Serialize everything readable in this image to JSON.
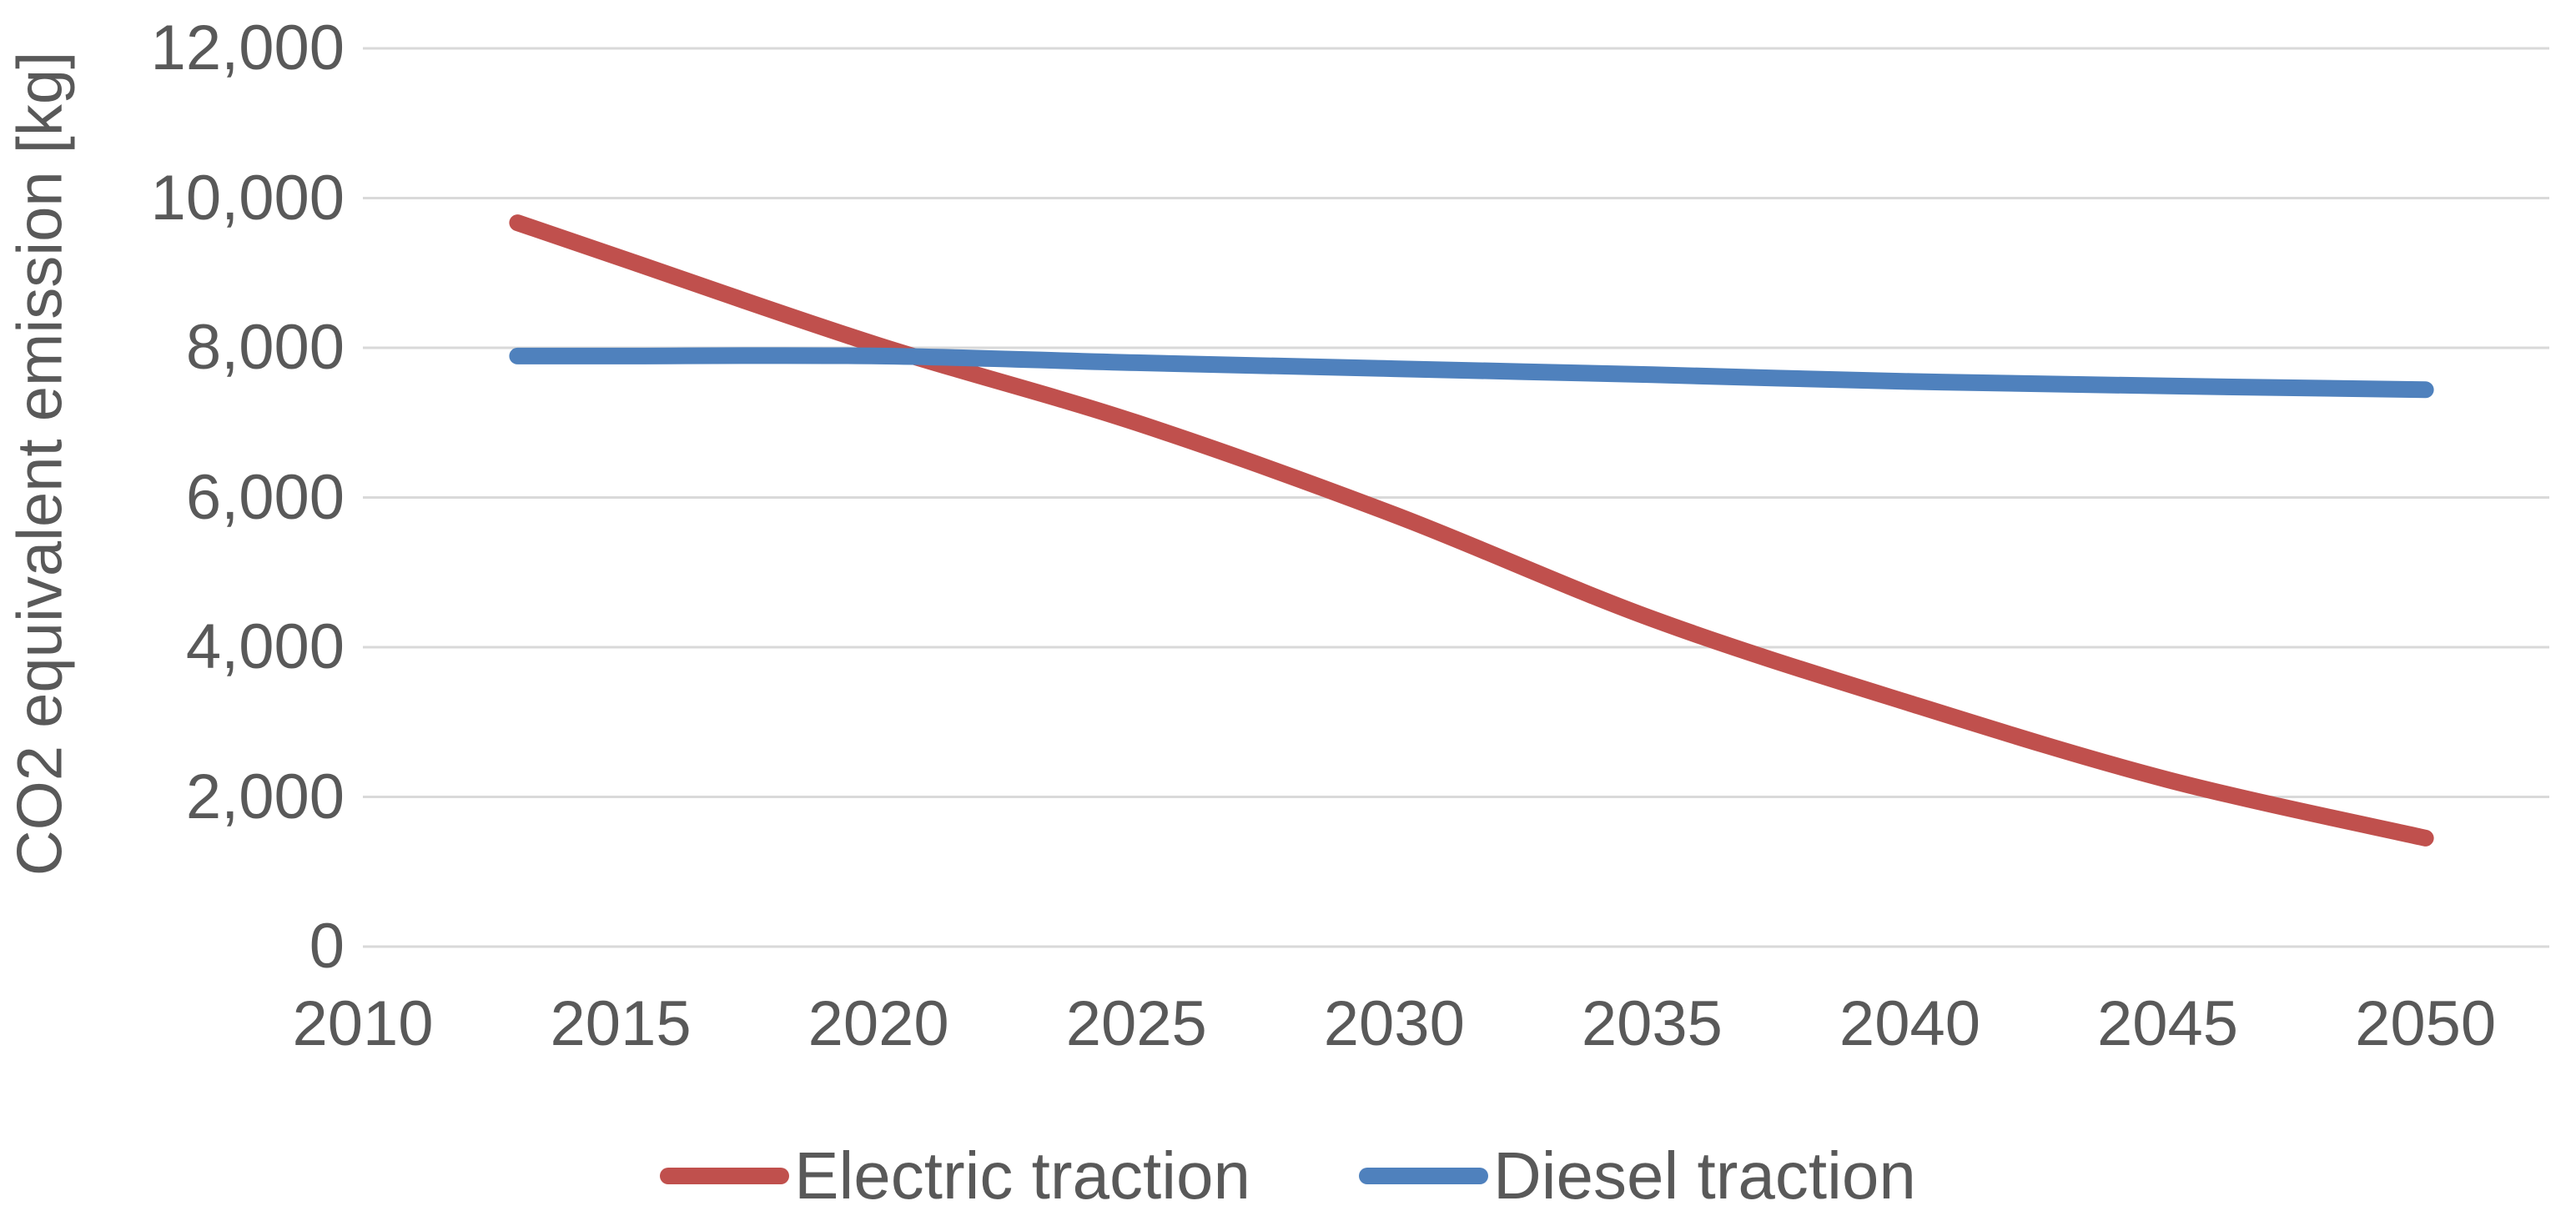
{
  "chart_data": {
    "type": "line",
    "title": "",
    "xlabel": "",
    "ylabel": "CO2 equivalent emission [kg]",
    "xlim": [
      2010,
      2052.4
    ],
    "ylim": [
      0,
      12000
    ],
    "grid": "horizontal gridlines every 2000, light gray, no axis lines",
    "legend_position": "bottom-center",
    "axis_text_color": "#595959",
    "gridline_color": "#D9D9D9",
    "y_ticks": [
      {
        "label": "12,000",
        "value": 12000
      },
      {
        "label": "10,000",
        "value": 10000
      },
      {
        "label": "8,000",
        "value": 8000
      },
      {
        "label": "6,000",
        "value": 6000
      },
      {
        "label": "4,000",
        "value": 4000
      },
      {
        "label": "2,000",
        "value": 2000
      },
      {
        "label": "0",
        "value": 0
      }
    ],
    "x_ticks": [
      {
        "label": "2010",
        "value": 2010
      },
      {
        "label": "2015",
        "value": 2015
      },
      {
        "label": "2020",
        "value": 2020
      },
      {
        "label": "2025",
        "value": 2025
      },
      {
        "label": "2030",
        "value": 2030
      },
      {
        "label": "2035",
        "value": 2035
      },
      {
        "label": "2040",
        "value": 2040
      },
      {
        "label": "2045",
        "value": 2045
      },
      {
        "label": "2050",
        "value": 2050
      }
    ],
    "series": [
      {
        "name": "Electric traction",
        "color": "#C0504D",
        "x": [
          2013,
          2015,
          2020,
          2025,
          2030,
          2035,
          2040,
          2045,
          2050
        ],
        "values": [
          9670,
          9200,
          8030,
          7000,
          5770,
          4380,
          3250,
          2230,
          1450
        ]
      },
      {
        "name": "Diesel traction",
        "color": "#4F81BD",
        "x": [
          2013,
          2015,
          2020,
          2025,
          2030,
          2035,
          2040,
          2045,
          2050
        ],
        "values": [
          7890,
          7890,
          7890,
          7800,
          7720,
          7640,
          7550,
          7490,
          7440
        ]
      }
    ]
  }
}
